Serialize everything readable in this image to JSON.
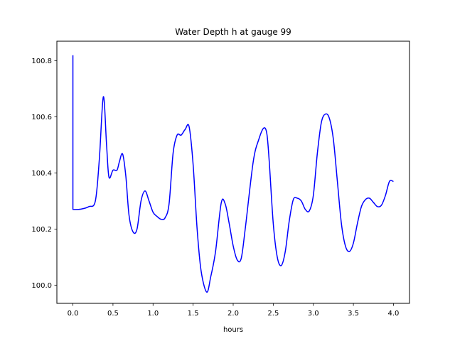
{
  "chart_data": {
    "type": "line",
    "title": "Water Depth h at gauge 99",
    "xlabel": "hours",
    "ylabel": "",
    "xlim": [
      -0.2,
      4.2
    ],
    "ylim": [
      99.935,
      100.87
    ],
    "xticks": [
      0.0,
      0.5,
      1.0,
      1.5,
      2.0,
      2.5,
      3.0,
      3.5,
      4.0
    ],
    "xtick_labels": [
      "0.0",
      "0.5",
      "1.0",
      "1.5",
      "2.0",
      "2.5",
      "3.0",
      "3.5",
      "4.0"
    ],
    "yticks": [
      100.0,
      100.2,
      100.4,
      100.6,
      100.8
    ],
    "ytick_labels": [
      "100.0",
      "100.2",
      "100.4",
      "100.6",
      "100.8"
    ],
    "grid": false,
    "line_color": "#0000ff",
    "series": [
      {
        "x": [
          0.0,
          0.0,
          0.0,
          0.1,
          0.2,
          0.28,
          0.33,
          0.38,
          0.42,
          0.45,
          0.5,
          0.55,
          0.58,
          0.62,
          0.66,
          0.7,
          0.75,
          0.8,
          0.85,
          0.9,
          0.95,
          1.0,
          1.05,
          1.1,
          1.15,
          1.2,
          1.25,
          1.3,
          1.35,
          1.4,
          1.45,
          1.5,
          1.55,
          1.6,
          1.67,
          1.72,
          1.78,
          1.85,
          1.9,
          1.95,
          2.0,
          2.05,
          2.1,
          2.15,
          2.25,
          2.32,
          2.38,
          2.42,
          2.45,
          2.5,
          2.55,
          2.6,
          2.65,
          2.7,
          2.75,
          2.8,
          2.85,
          2.9,
          2.95,
          3.0,
          3.05,
          3.1,
          3.15,
          3.2,
          3.25,
          3.3,
          3.35,
          3.4,
          3.45,
          3.5,
          3.55,
          3.6,
          3.65,
          3.7,
          3.75,
          3.8,
          3.85,
          3.9,
          3.95,
          4.0
        ],
        "y": [
          100.82,
          100.5,
          100.27,
          100.271,
          100.28,
          100.3,
          100.45,
          100.672,
          100.5,
          100.385,
          100.41,
          100.41,
          100.44,
          100.468,
          100.39,
          100.25,
          100.19,
          100.2,
          100.3,
          100.336,
          100.3,
          100.26,
          100.245,
          100.235,
          100.24,
          100.29,
          100.47,
          100.535,
          100.535,
          100.555,
          100.565,
          100.43,
          100.2,
          100.05,
          99.975,
          100.03,
          100.12,
          100.292,
          100.29,
          100.22,
          100.14,
          100.09,
          100.095,
          100.2,
          100.44,
          100.52,
          100.56,
          100.54,
          100.44,
          100.22,
          100.1,
          100.07,
          100.12,
          100.23,
          100.305,
          100.31,
          100.3,
          100.27,
          100.265,
          100.32,
          100.47,
          100.58,
          100.61,
          100.595,
          100.52,
          100.37,
          100.22,
          100.14,
          100.12,
          100.15,
          100.22,
          100.28,
          100.305,
          100.31,
          100.295,
          100.28,
          100.285,
          100.32,
          100.37,
          100.37
        ]
      }
    ]
  }
}
